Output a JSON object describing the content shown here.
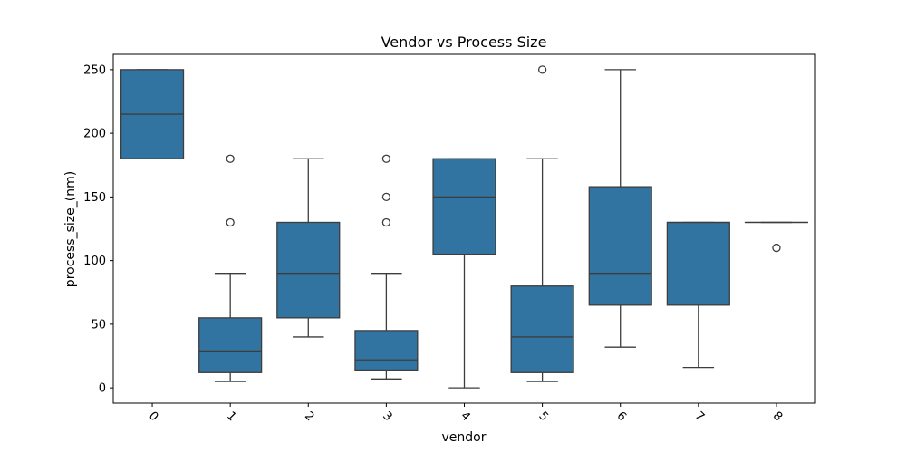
{
  "chart_data": {
    "type": "box",
    "title": "Vendor vs Process Size",
    "xlabel": "vendor",
    "ylabel": "process_size_(nm)",
    "ylim": [
      -12,
      262
    ],
    "yticks": [
      0,
      50,
      100,
      150,
      200,
      250
    ],
    "categories": [
      "0",
      "1",
      "2",
      "3",
      "4",
      "5",
      "6",
      "7",
      "8"
    ],
    "color": "#3274a1",
    "grid": false,
    "boxes": [
      {
        "category": "0",
        "whisker_low": 180,
        "q1": 180,
        "median": 215,
        "q3": 250,
        "whisker_high": 250,
        "outliers": []
      },
      {
        "category": "1",
        "whisker_low": 5,
        "q1": 12,
        "median": 29,
        "q3": 55,
        "whisker_high": 90,
        "outliers": [
          130,
          180
        ]
      },
      {
        "category": "2",
        "whisker_low": 40,
        "q1": 55,
        "median": 90,
        "q3": 130,
        "whisker_high": 180,
        "outliers": []
      },
      {
        "category": "3",
        "whisker_low": 7,
        "q1": 14,
        "median": 22,
        "q3": 45,
        "whisker_high": 90,
        "outliers": [
          130,
          150,
          180
        ]
      },
      {
        "category": "4",
        "whisker_low": 0,
        "q1": 105,
        "median": 150,
        "q3": 180,
        "whisker_high": 180,
        "outliers": []
      },
      {
        "category": "5",
        "whisker_low": 5,
        "q1": 12,
        "median": 40,
        "q3": 80,
        "whisker_high": 180,
        "outliers": [
          250
        ]
      },
      {
        "category": "6",
        "whisker_low": 32,
        "q1": 65,
        "median": 90,
        "q3": 158,
        "whisker_high": 250,
        "outliers": []
      },
      {
        "category": "7",
        "whisker_low": 16,
        "q1": 65,
        "median": 130,
        "q3": 130,
        "whisker_high": 130,
        "outliers": []
      },
      {
        "category": "8",
        "whisker_low": 130,
        "q1": 130,
        "median": 130,
        "q3": 130,
        "whisker_high": 130,
        "outliers": [
          110
        ]
      }
    ]
  }
}
